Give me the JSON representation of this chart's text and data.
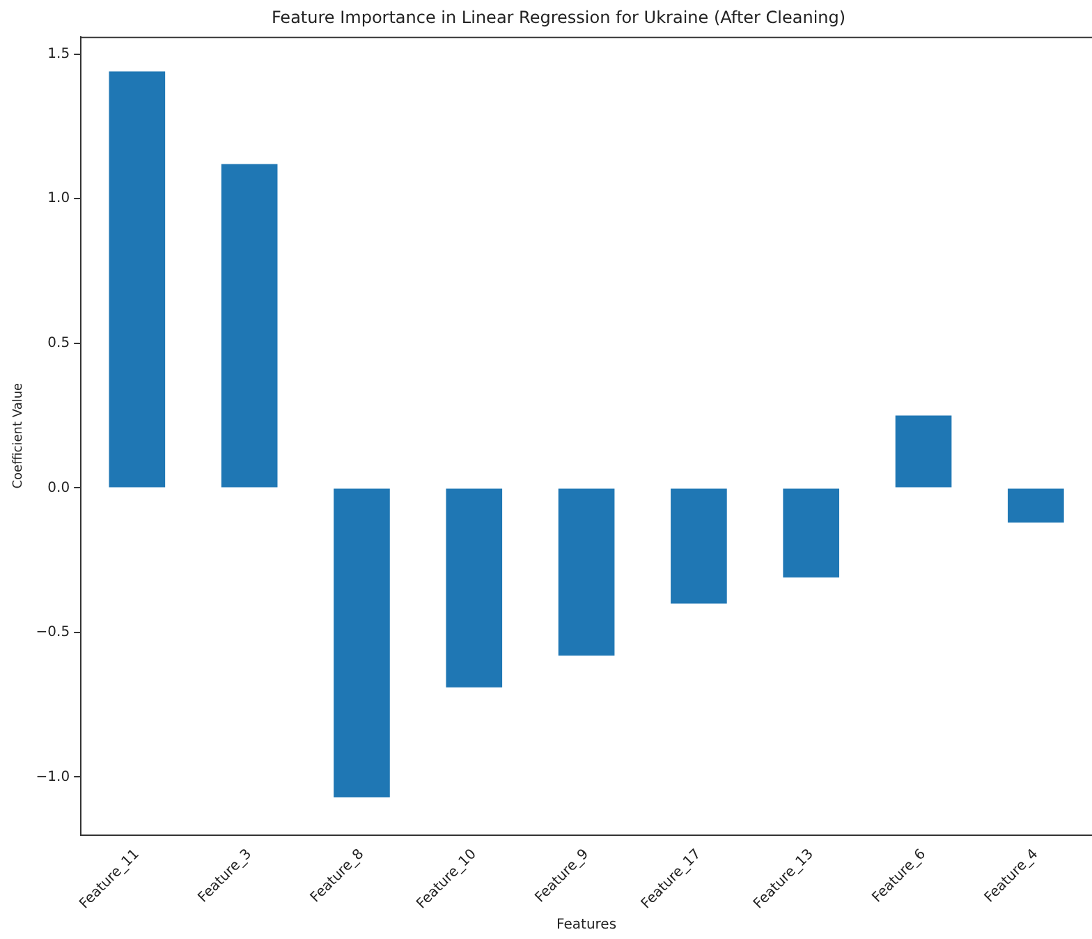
{
  "chart_data": {
    "type": "bar",
    "title": "Feature Importance in Linear Regression for Ukraine (After Cleaning)",
    "xlabel": "Features",
    "ylabel": "Coefficient Value",
    "categories": [
      "Feature_11",
      "Feature_3",
      "Feature_8",
      "Feature_10",
      "Feature_9",
      "Feature_17",
      "Feature_13",
      "Feature_6",
      "Feature_4"
    ],
    "values": [
      1.44,
      1.12,
      -1.07,
      -0.69,
      -0.58,
      -0.4,
      -0.31,
      0.25,
      -0.12
    ],
    "color": "#1f77b4",
    "ylim": [
      -1.2,
      1.56
    ],
    "yticks": [
      {
        "value": -1,
        "label": "−1.0"
      },
      {
        "value": -0.5,
        "label": "−0.5"
      },
      {
        "value": 0,
        "label": "0.0"
      },
      {
        "value": 0.5,
        "label": "0.5"
      },
      {
        "value": 1,
        "label": "1.0"
      },
      {
        "value": 1.5,
        "label": "1.5"
      }
    ],
    "grid": false,
    "legend": false
  }
}
